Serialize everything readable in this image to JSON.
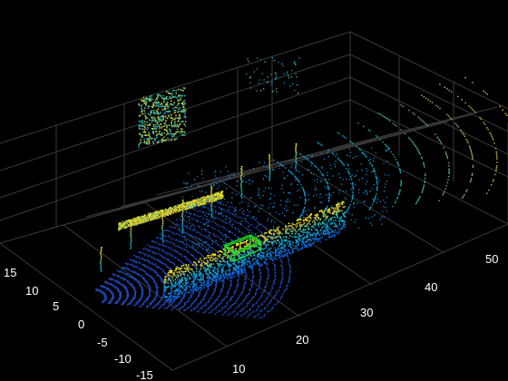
{
  "chart_data": {
    "type": "scatter",
    "title": "",
    "xlabel": "",
    "ylabel": "",
    "x_ticks": [
      "10",
      "20",
      "30",
      "40",
      "50"
    ],
    "y_ticks": [
      "-15",
      "-10",
      "-5",
      "0",
      "5",
      "10",
      "15"
    ],
    "grid": true,
    "colormap": "parula",
    "background": "#000000",
    "grid_color": "#3a3a3a",
    "box_color": "#22e01e"
  }
}
